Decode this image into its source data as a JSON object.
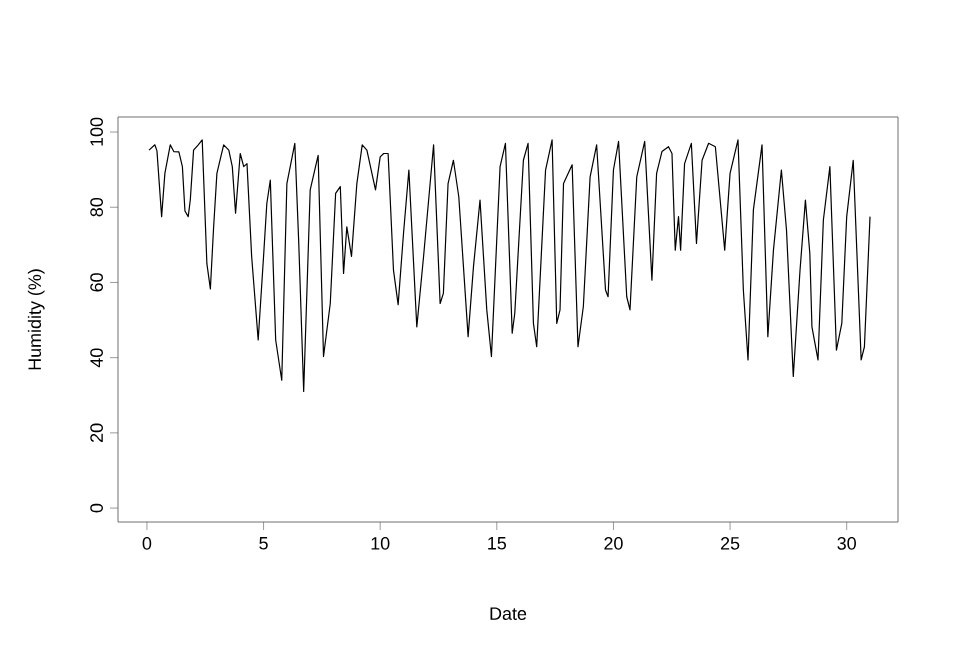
{
  "chart_data": {
    "type": "line",
    "xlabel": "Date",
    "ylabel": "Humidity (%)",
    "xlim": [
      -1.24,
      32.2
    ],
    "ylim": [
      -3.7,
      104
    ],
    "xticks": [
      0,
      5,
      10,
      15,
      20,
      25,
      30
    ],
    "yticks": [
      0,
      20,
      40,
      60,
      80,
      100
    ],
    "marker": "none",
    "line_style": "solid",
    "series": [
      {
        "color": "#000000",
        "x": [
          0.09,
          0.34,
          0.43,
          0.63,
          0.77,
          1.0,
          1.15,
          1.37,
          1.52,
          1.63,
          1.77,
          1.86,
          2.0,
          2.2,
          2.37,
          2.57,
          2.72,
          2.86,
          3.0,
          3.29,
          3.51,
          3.66,
          3.8,
          4.0,
          4.15,
          4.29,
          4.49,
          4.77,
          5.0,
          5.14,
          5.29,
          5.52,
          5.78,
          6.0,
          6.34,
          6.51,
          6.72,
          7.0,
          7.34,
          7.57,
          7.86,
          8.09,
          8.29,
          8.43,
          8.57,
          8.77,
          9.0,
          9.23,
          9.43,
          9.8,
          10.0,
          10.15,
          10.34,
          10.57,
          10.77,
          11.0,
          11.23,
          11.57,
          11.86,
          12.29,
          12.57,
          12.71,
          12.91,
          13.14,
          13.37,
          13.77,
          14.0,
          14.28,
          14.57,
          14.77,
          15.14,
          15.37,
          15.66,
          15.77,
          16.14,
          16.34,
          16.57,
          16.71,
          17.09,
          17.37,
          17.57,
          17.71,
          17.86,
          18.23,
          18.48,
          18.71,
          19.0,
          19.28,
          19.66,
          19.77,
          20.0,
          20.22,
          20.57,
          20.71,
          21.0,
          21.34,
          21.65,
          21.85,
          22.08,
          22.36,
          22.51,
          22.65,
          22.79,
          22.88,
          23.05,
          23.34,
          23.56,
          23.8,
          24.08,
          24.37,
          24.77,
          25.0,
          25.34,
          25.57,
          25.77,
          26.0,
          26.37,
          26.62,
          26.86,
          27.2,
          27.42,
          27.71,
          28.0,
          28.23,
          28.42,
          28.51,
          28.77,
          29.0,
          29.28,
          29.56,
          29.79,
          30.0,
          30.28,
          30.62,
          30.76,
          31.0
        ],
        "values": [
          95.2,
          96.6,
          95,
          77.5,
          89,
          96.6,
          94.8,
          94.7,
          90.8,
          79,
          77.5,
          82,
          95.2,
          96.6,
          97.9,
          65,
          58.3,
          74.8,
          89,
          96.6,
          95.2,
          90.8,
          78.4,
          94.3,
          90.8,
          91.6,
          66.9,
          44.7,
          66.9,
          81,
          87.2,
          44.7,
          34,
          86.3,
          97,
          70.4,
          31,
          84.6,
          93.8,
          40.3,
          54.4,
          83.7,
          85.5,
          62.4,
          74.8,
          66.9,
          86.3,
          96.6,
          95.2,
          84.6,
          93.4,
          94.3,
          94.3,
          63.3,
          54.1,
          73,
          89.9,
          48.2,
          66.9,
          96.6,
          54.4,
          57.1,
          86.3,
          92.5,
          82.8,
          45.6,
          64.2,
          81.9,
          52.7,
          40.3,
          90.8,
          97,
          46.5,
          51.8,
          92.5,
          97,
          49.1,
          42.9,
          89.9,
          97.9,
          49.1,
          52.7,
          86.3,
          91.3,
          42.9,
          53.6,
          88.1,
          96.6,
          58,
          56.2,
          89.9,
          97.5,
          56.2,
          52.7,
          88.1,
          97.5,
          60.6,
          89,
          94.8,
          96.1,
          94.3,
          68.6,
          77.5,
          68.6,
          91.6,
          97,
          70.4,
          92.5,
          97,
          96.1,
          68.6,
          89,
          97.9,
          58,
          39.4,
          79.3,
          96.6,
          45.6,
          68.6,
          89.9,
          73.9,
          35,
          63.3,
          81.9,
          67.7,
          48.2,
          39.4,
          76.6,
          90.8,
          42,
          49.1,
          77.5,
          92.5,
          39.4,
          42.9,
          77.5
        ]
      }
    ]
  }
}
